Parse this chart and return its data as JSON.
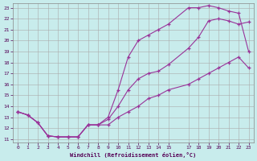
{
  "xlabel": "Windchill (Refroidissement éolien,°C)",
  "bg_color": "#c8ecec",
  "grid_color": "#aaaaaa",
  "line_color": "#993399",
  "marker": "+",
  "xlim_min": -0.5,
  "xlim_max": 23.5,
  "ylim_min": 10.7,
  "ylim_max": 23.4,
  "xticks": [
    0,
    1,
    2,
    3,
    4,
    5,
    6,
    7,
    8,
    9,
    10,
    11,
    12,
    13,
    14,
    15,
    17,
    18,
    19,
    20,
    21,
    22,
    23
  ],
  "yticks": [
    11,
    12,
    13,
    14,
    15,
    16,
    17,
    18,
    19,
    20,
    21,
    22,
    23
  ],
  "line1_x": [
    0,
    1,
    2,
    3,
    4,
    5,
    6,
    7,
    8,
    9,
    10,
    11,
    12,
    13,
    14,
    15,
    17,
    18,
    19,
    20,
    21,
    22,
    23
  ],
  "line1_y": [
    13.5,
    13.2,
    12.5,
    11.3,
    11.2,
    11.2,
    11.2,
    12.3,
    12.3,
    12.3,
    13.0,
    13.5,
    14.0,
    14.7,
    15.0,
    15.5,
    16.0,
    16.5,
    17.0,
    17.5,
    18.0,
    18.5,
    17.5
  ],
  "line2_x": [
    0,
    1,
    2,
    3,
    4,
    5,
    6,
    7,
    8,
    9,
    10,
    11,
    12,
    13,
    14,
    15,
    17,
    18,
    19,
    20,
    21,
    22,
    23
  ],
  "line2_y": [
    13.5,
    13.2,
    12.5,
    11.3,
    11.2,
    11.2,
    11.2,
    12.3,
    12.3,
    12.8,
    14.0,
    15.5,
    16.5,
    17.0,
    17.2,
    17.8,
    19.3,
    20.3,
    21.8,
    22.0,
    21.8,
    21.5,
    21.7
  ],
  "line3_x": [
    0,
    1,
    2,
    3,
    4,
    5,
    6,
    7,
    8,
    9,
    10,
    11,
    12,
    13,
    14,
    15,
    17,
    18,
    19,
    20,
    21,
    22,
    23
  ],
  "line3_y": [
    13.5,
    13.2,
    12.5,
    11.3,
    11.2,
    11.2,
    11.2,
    12.3,
    12.3,
    13.0,
    15.5,
    18.5,
    20.0,
    20.5,
    21.0,
    21.5,
    23.0,
    23.0,
    23.2,
    23.0,
    22.7,
    22.5,
    19.0
  ]
}
